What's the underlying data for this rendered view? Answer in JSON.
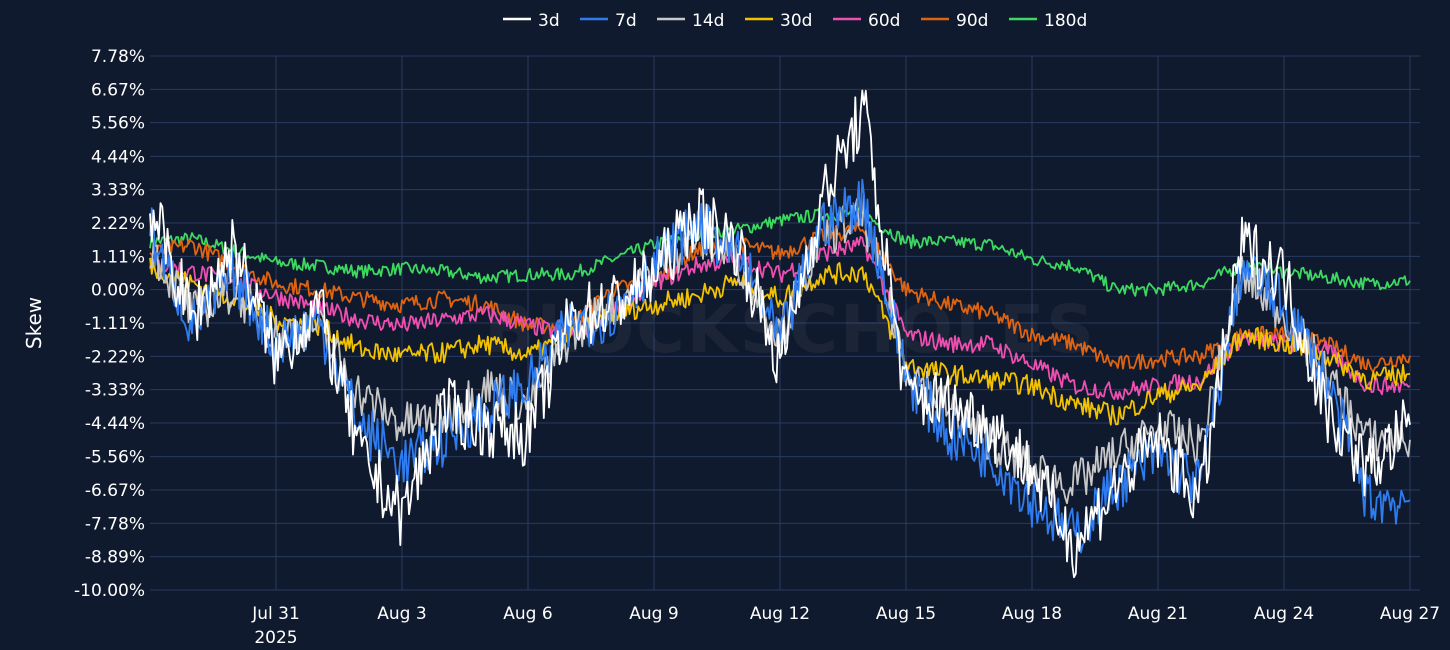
{
  "watermark": "BLOCKSCHOLES",
  "chart_data": {
    "type": "line",
    "ylabel": "Skew",
    "y_unit": "%",
    "ylim": [
      -10.0,
      7.78
    ],
    "yticks": [
      7.78,
      6.67,
      5.56,
      4.44,
      3.33,
      2.22,
      1.11,
      0.0,
      -1.11,
      -2.22,
      -3.33,
      -4.44,
      -5.56,
      -6.67,
      -7.78,
      -8.89,
      -10.0
    ],
    "xlim": [
      "2025-07-28",
      "2025-08-27"
    ],
    "xticks": [
      {
        "date": "2025-07-31",
        "label": "Jul 31",
        "sublabel": "2025"
      },
      {
        "date": "2025-08-03",
        "label": "Aug 3",
        "sublabel": ""
      },
      {
        "date": "2025-08-06",
        "label": "Aug 6",
        "sublabel": ""
      },
      {
        "date": "2025-08-09",
        "label": "Aug 9",
        "sublabel": ""
      },
      {
        "date": "2025-08-12",
        "label": "Aug 12",
        "sublabel": ""
      },
      {
        "date": "2025-08-15",
        "label": "Aug 15",
        "sublabel": ""
      },
      {
        "date": "2025-08-18",
        "label": "Aug 18",
        "sublabel": ""
      },
      {
        "date": "2025-08-21",
        "label": "Aug 21",
        "sublabel": ""
      },
      {
        "date": "2025-08-24",
        "label": "Aug 24",
        "sublabel": ""
      },
      {
        "date": "2025-08-27",
        "label": "Aug 27",
        "sublabel": ""
      }
    ],
    "grid": true,
    "legend_position": "top-center",
    "x": [
      "2025-07-28",
      "2025-07-29",
      "2025-07-30",
      "2025-07-31",
      "2025-08-01",
      "2025-08-02",
      "2025-08-03",
      "2025-08-04",
      "2025-08-05",
      "2025-08-06",
      "2025-08-07",
      "2025-08-08",
      "2025-08-09",
      "2025-08-10",
      "2025-08-11",
      "2025-08-12",
      "2025-08-13",
      "2025-08-14",
      "2025-08-15",
      "2025-08-16",
      "2025-08-17",
      "2025-08-18",
      "2025-08-19",
      "2025-08-20",
      "2025-08-21",
      "2025-08-22",
      "2025-08-23",
      "2025-08-24",
      "2025-08-25",
      "2025-08-26",
      "2025-08-27"
    ],
    "series": [
      {
        "name": "3d",
        "color": "#ffffff",
        "values": [
          2.8,
          -1.0,
          1.5,
          -2.3,
          -0.5,
          -5.5,
          -7.5,
          -4.0,
          -4.5,
          -4.8,
          -1.0,
          -0.5,
          0.5,
          2.5,
          1.5,
          -2.5,
          3.0,
          6.0,
          -3.5,
          -3.8,
          -4.5,
          -6.0,
          -8.5,
          -6.5,
          -5.0,
          -7.0,
          1.5,
          0.5,
          -4.0,
          -6.0,
          -4.5
        ]
      },
      {
        "name": "7d",
        "color": "#2e7cf0",
        "values": [
          2.0,
          -1.2,
          0.5,
          -1.8,
          -1.0,
          -4.5,
          -5.8,
          -5.0,
          -4.0,
          -3.2,
          -1.2,
          -0.8,
          0.8,
          2.2,
          1.2,
          -1.8,
          2.2,
          3.0,
          -2.8,
          -4.8,
          -5.5,
          -7.0,
          -8.2,
          -6.5,
          -5.5,
          -6.5,
          0.8,
          -0.5,
          -3.0,
          -7.0,
          -7.0
        ]
      },
      {
        "name": "14d",
        "color": "#c8c8c8",
        "values": [
          1.5,
          -0.8,
          0.0,
          -1.5,
          -1.2,
          -3.5,
          -4.5,
          -4.2,
          -3.2,
          -3.8,
          -1.5,
          -0.5,
          0.6,
          1.8,
          1.0,
          -1.5,
          1.8,
          2.4,
          -2.5,
          -4.0,
          -5.0,
          -6.0,
          -6.5,
          -5.5,
          -4.6,
          -5.2,
          0.5,
          -0.8,
          -2.8,
          -5.0,
          -5.0
        ]
      },
      {
        "name": "30d",
        "color": "#f2c200",
        "values": [
          0.8,
          0.2,
          -0.3,
          -1.0,
          -1.2,
          -2.0,
          -2.2,
          -2.1,
          -1.8,
          -2.2,
          -1.5,
          -0.8,
          -0.5,
          -0.2,
          0.3,
          -0.3,
          0.5,
          0.6,
          -2.5,
          -2.8,
          -3.0,
          -3.2,
          -3.8,
          -4.2,
          -3.5,
          -3.2,
          -1.5,
          -1.8,
          -2.2,
          -3.0,
          -2.8
        ]
      },
      {
        "name": "60d",
        "color": "#ee4fb0",
        "values": [
          0.9,
          0.6,
          0.3,
          -0.2,
          -0.6,
          -1.0,
          -1.2,
          -1.0,
          -0.8,
          -1.2,
          -1.5,
          -0.8,
          0.2,
          0.8,
          1.0,
          0.5,
          1.2,
          1.5,
          -1.5,
          -1.8,
          -1.8,
          -2.5,
          -3.2,
          -3.4,
          -3.2,
          -3.0,
          -1.6,
          -1.8,
          -2.0,
          -3.2,
          -3.2
        ]
      },
      {
        "name": "90d",
        "color": "#e06410",
        "values": [
          1.2,
          1.5,
          0.8,
          0.2,
          0.0,
          -0.3,
          -0.5,
          -0.3,
          -0.5,
          -1.2,
          -1.2,
          0.0,
          0.3,
          1.3,
          1.5,
          1.2,
          1.8,
          2.0,
          0.0,
          -0.5,
          -0.8,
          -1.5,
          -1.8,
          -2.5,
          -2.3,
          -2.2,
          -1.5,
          -1.5,
          -1.8,
          -2.5,
          -2.2
        ]
      },
      {
        "name": "180d",
        "color": "#3cd860",
        "values": [
          1.6,
          1.7,
          1.3,
          0.9,
          0.8,
          0.6,
          0.7,
          0.6,
          0.4,
          0.5,
          0.5,
          1.0,
          1.5,
          1.8,
          2.0,
          2.3,
          2.5,
          2.5,
          1.6,
          1.6,
          1.5,
          1.0,
          0.8,
          0.0,
          0.0,
          0.2,
          0.8,
          0.6,
          0.4,
          0.2,
          0.3
        ]
      }
    ]
  }
}
